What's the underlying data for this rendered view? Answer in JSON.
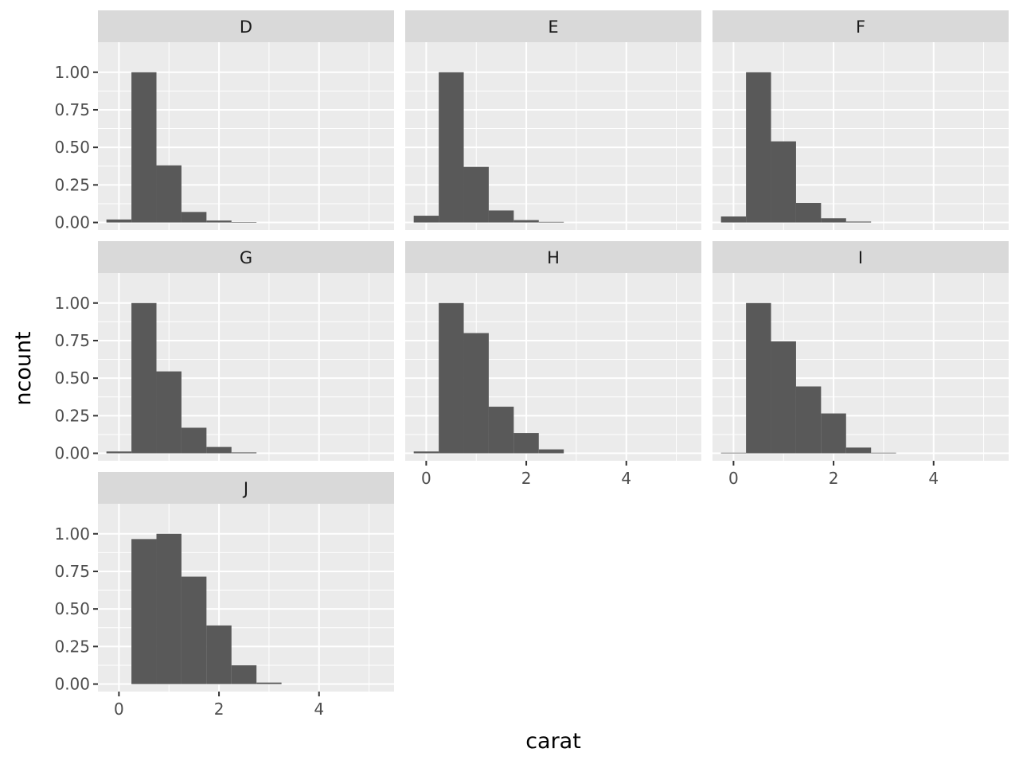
{
  "chart_data": {
    "type": "bar",
    "subtype": "faceted-histogram",
    "xlabel": "carat",
    "ylabel": "ncount",
    "xlim": [
      -0.42,
      5.5
    ],
    "ylim": [
      -0.05,
      1.2
    ],
    "x_ticks": [
      0,
      2,
      4
    ],
    "x_minor": [
      1,
      3,
      5
    ],
    "y_ticks": [
      0.0,
      0.25,
      0.5,
      0.75,
      1.0
    ],
    "y_tick_labels": [
      "0.00",
      "0.25",
      "0.50",
      "0.75",
      "1.00"
    ],
    "bin_edges": [
      -0.25,
      0.25,
      0.75,
      1.25,
      1.75,
      2.25,
      2.75,
      3.25
    ],
    "grid": true,
    "facets": [
      {
        "label": "D",
        "values": [
          0.02,
          1.0,
          0.38,
          0.07,
          0.013,
          0.003,
          0
        ]
      },
      {
        "label": "E",
        "values": [
          0.045,
          1.0,
          0.37,
          0.08,
          0.016,
          0.004,
          0
        ]
      },
      {
        "label": "F",
        "values": [
          0.04,
          1.0,
          0.54,
          0.13,
          0.028,
          0.006,
          0
        ]
      },
      {
        "label": "G",
        "values": [
          0.012,
          1.0,
          0.545,
          0.17,
          0.042,
          0.006,
          0
        ]
      },
      {
        "label": "H",
        "values": [
          0.012,
          1.0,
          0.8,
          0.31,
          0.135,
          0.026,
          0
        ]
      },
      {
        "label": "I",
        "values": [
          0.004,
          1.0,
          0.745,
          0.445,
          0.265,
          0.038,
          0.004
        ]
      },
      {
        "label": "J",
        "values": [
          0.0,
          0.965,
          1.0,
          0.715,
          0.39,
          0.125,
          0.01
        ]
      }
    ],
    "colors": {
      "bar": "#595959",
      "panel_bg": "#ebebeb",
      "strip_bg": "#d9d9d9",
      "grid": "#ffffff",
      "tick": "#333333"
    }
  }
}
